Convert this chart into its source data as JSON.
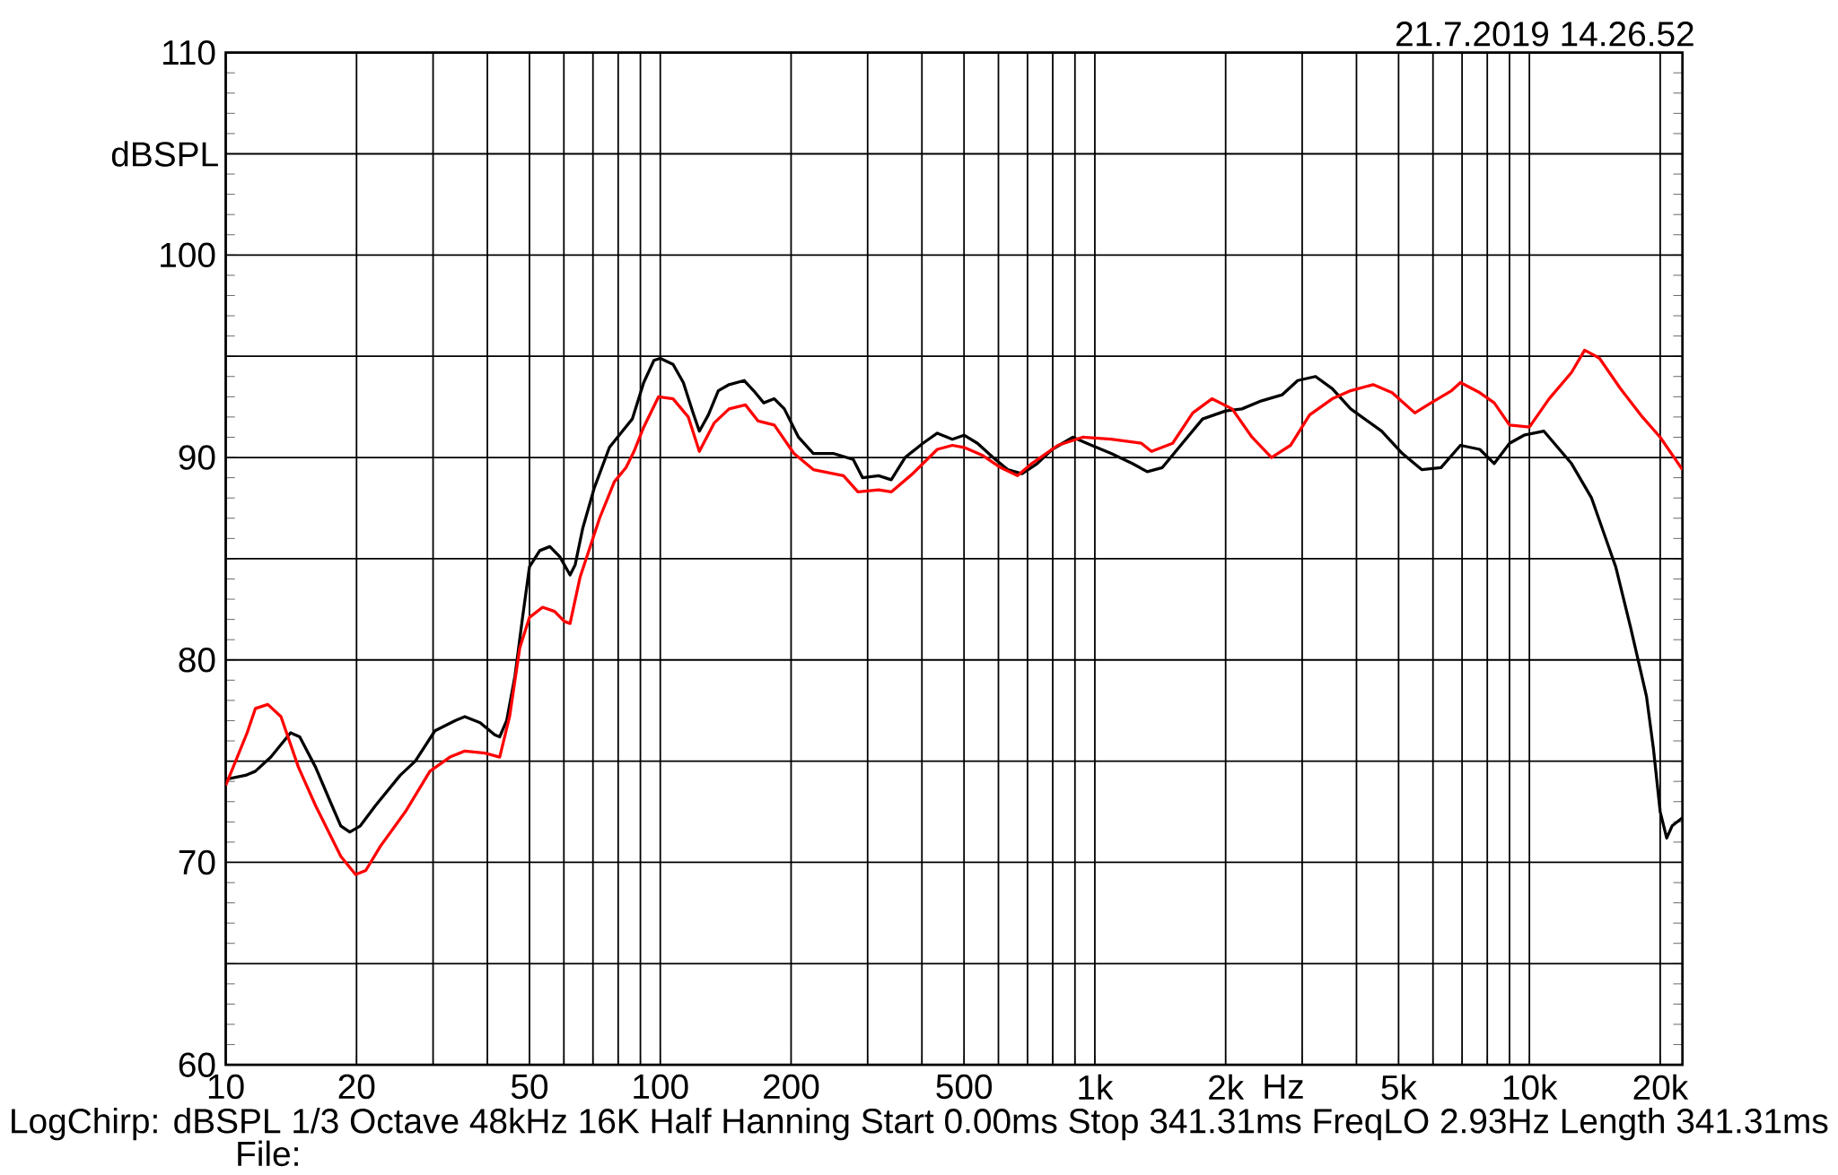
{
  "chart_data": {
    "type": "line",
    "xlabel": "Hz",
    "ylabel": "dBSPL",
    "log": "x",
    "grid": true,
    "legend": false,
    "marker": "none",
    "line_style": "solid",
    "xlim": [
      10,
      22500
    ],
    "ylim": [
      60,
      110
    ],
    "xticks": [
      10,
      20,
      {
        "value": 30,
        "label": null
      },
      {
        "value": 40,
        "label": null
      },
      50,
      {
        "value": 60,
        "label": null
      },
      {
        "value": 70,
        "label": null
      },
      {
        "value": 80,
        "label": null
      },
      {
        "value": 90,
        "label": null
      },
      100,
      200,
      {
        "value": 300,
        "label": null
      },
      {
        "value": 400,
        "label": null
      },
      500,
      {
        "value": 600,
        "label": null
      },
      {
        "value": 700,
        "label": null
      },
      {
        "value": 800,
        "label": null
      },
      {
        "value": 900,
        "label": null
      },
      {
        "value": 1000,
        "label": "1k"
      },
      {
        "value": 2000,
        "label": "2k"
      },
      {
        "value": 3000,
        "label": null
      },
      {
        "value": 4000,
        "label": null
      },
      {
        "value": 5000,
        "label": "5k"
      },
      {
        "value": 6000,
        "label": null
      },
      {
        "value": 7000,
        "label": null
      },
      {
        "value": 8000,
        "label": null
      },
      {
        "value": 9000,
        "label": null
      },
      {
        "value": 10000,
        "label": "10k"
      },
      {
        "value": 20000,
        "label": "20k"
      }
    ],
    "yticks": [
      60,
      {
        "value": 65,
        "label": null
      },
      70,
      {
        "value": 75,
        "label": null
      },
      80,
      {
        "value": 85,
        "label": null
      },
      90,
      {
        "value": 95,
        "label": null
      },
      100,
      {
        "value": 105,
        "label": null
      },
      110
    ],
    "annotations": [
      "21.7.2019 14.26.52",
      "LogChirp:  dBSPL   1/3 Octave   48kHz   16K   Half Hanning   Start 0.00ms    Stop 341.31ms    FreqLO 2.93Hz    Length 341.31ms",
      "File:"
    ],
    "series": [
      {
        "color": "#000000",
        "x": [
          10,
          11.1,
          11.7,
          12.7,
          14.1,
          14.8,
          16.1,
          17.4,
          18.4,
          19.3,
          20.4,
          22.1,
          25.2,
          27.3,
          30.3,
          33.7,
          35.5,
          38.5,
          41.6,
          42.7,
          44.3,
          46.3,
          48.2,
          50,
          52.8,
          55.7,
          58.7,
          62,
          63.7,
          66.3,
          70.5,
          76.4,
          81.8,
          86.2,
          91.6,
          96.7,
          100,
          107,
          113,
          119,
          123,
          129,
          136,
          144,
          156,
          164,
          173,
          183,
          193,
          208,
          225,
          250,
          278,
          292,
          318,
          340,
          366,
          402,
          434,
          470,
          500,
          537,
          583,
          630,
          680,
          737,
          798,
          890,
          983,
          1090,
          1220,
          1320,
          1430,
          1590,
          1770,
          2000,
          2180,
          2420,
          2700,
          2930,
          3220,
          3520,
          3880,
          4570,
          5100,
          5650,
          6260,
          6940,
          7690,
          8300,
          9000,
          9720,
          10800,
          12500,
          13900,
          15800,
          17100,
          18600,
          19300,
          20000,
          20700,
          21300,
          22500
        ],
        "values": [
          74.1,
          74.3,
          74.5,
          75.2,
          76.4,
          76.2,
          74.7,
          73.0,
          71.8,
          71.5,
          71.8,
          72.8,
          74.3,
          75.0,
          76.5,
          77.0,
          77.2,
          76.9,
          76.3,
          76.2,
          77.0,
          79.2,
          82.1,
          84.6,
          85.4,
          85.6,
          85.1,
          84.2,
          84.7,
          86.5,
          88.5,
          90.5,
          91.3,
          91.9,
          93.7,
          94.8,
          94.9,
          94.6,
          93.7,
          92.2,
          91.3,
          92.1,
          93.3,
          93.6,
          93.8,
          93.3,
          92.7,
          92.9,
          92.4,
          91.0,
          90.2,
          90.2,
          89.9,
          89.0,
          89.1,
          88.9,
          90.0,
          90.7,
          91.2,
          90.9,
          91.1,
          90.7,
          90.0,
          89.4,
          89.2,
          89.7,
          90.4,
          91.0,
          90.6,
          90.2,
          89.7,
          89.3,
          89.5,
          90.7,
          91.9,
          92.3,
          92.4,
          92.8,
          93.1,
          93.8,
          94.0,
          93.4,
          92.4,
          91.3,
          90.2,
          89.4,
          89.5,
          90.6,
          90.4,
          89.7,
          90.7,
          91.1,
          91.3,
          89.7,
          88.0,
          84.6,
          81.6,
          78.2,
          75.6,
          72.5,
          71.2,
          71.8,
          72.2
        ]
      },
      {
        "color": "#ff0000",
        "x": [
          10,
          11.2,
          11.7,
          12.5,
          13.4,
          14.7,
          16.1,
          18.4,
          19.9,
          21,
          22.7,
          25.9,
          29.5,
          32.8,
          35.5,
          39.5,
          42.7,
          45,
          47.5,
          50,
          53.6,
          57.1,
          60.2,
          62,
          65.4,
          72.5,
          78.4,
          83.4,
          87,
          91.6,
          99.1,
          107,
          116,
          123,
          133,
          144,
          157,
          168,
          183,
          203,
          225,
          264,
          285,
          318,
          340,
          381,
          434,
          470,
          500,
          552,
          607,
          664,
          716,
          822,
          937,
          1090,
          1280,
          1350,
          1510,
          1680,
          1860,
          2070,
          2300,
          2550,
          2820,
          3120,
          3520,
          3880,
          4370,
          4830,
          5450,
          5940,
          6620,
          6940,
          7690,
          8300,
          9000,
          10000,
          11100,
          12500,
          13400,
          14500,
          16200,
          18200,
          20000,
          22500
        ],
        "values": [
          73.8,
          76.4,
          77.6,
          77.8,
          77.2,
          74.7,
          72.8,
          70.3,
          69.4,
          69.6,
          70.8,
          72.5,
          74.5,
          75.2,
          75.5,
          75.4,
          75.2,
          77.2,
          80.6,
          82.1,
          82.6,
          82.4,
          81.9,
          81.8,
          84.1,
          87.0,
          88.8,
          89.5,
          90.3,
          91.5,
          93.0,
          92.9,
          92.0,
          90.3,
          91.7,
          92.4,
          92.6,
          91.8,
          91.6,
          90.2,
          89.4,
          89.1,
          88.3,
          88.4,
          88.3,
          89.2,
          90.4,
          90.6,
          90.5,
          90.1,
          89.5,
          89.1,
          89.7,
          90.6,
          91.0,
          90.9,
          90.7,
          90.3,
          90.7,
          92.2,
          92.9,
          92.4,
          91.0,
          90.0,
          90.6,
          92.1,
          92.9,
          93.3,
          93.6,
          93.2,
          92.2,
          92.7,
          93.3,
          93.7,
          93.2,
          92.7,
          91.6,
          91.5,
          92.9,
          94.2,
          95.3,
          94.9,
          93.4,
          92.0,
          91.0,
          89.4
        ]
      }
    ]
  }
}
